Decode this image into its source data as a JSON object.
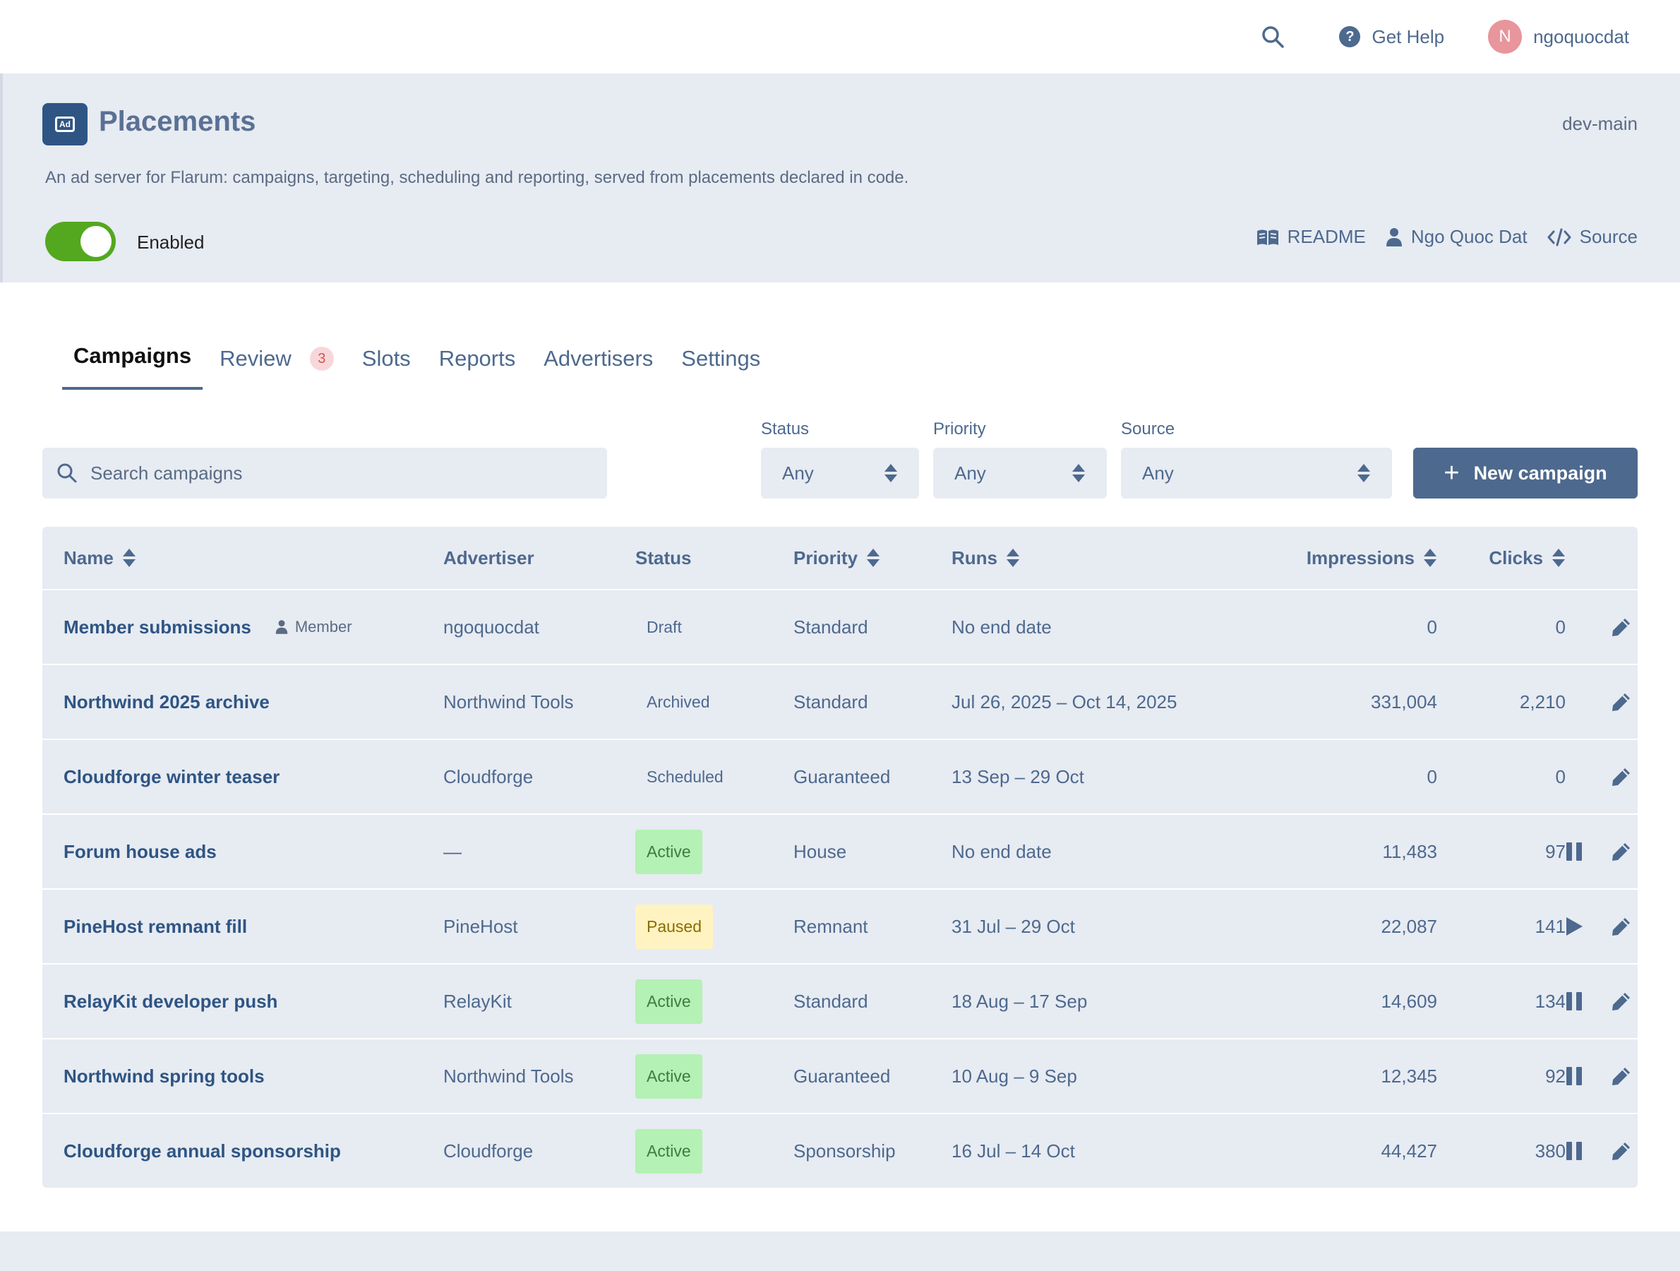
{
  "topbar": {
    "help_label": "Get Help",
    "user_initial": "N",
    "username": "ngoquocdat"
  },
  "extension": {
    "icon_text": "Ad",
    "title": "Placements",
    "version": "dev-main",
    "description": "An ad server for Flarum: campaigns, targeting, scheduling and reporting, served from placements declared in code.",
    "enabled_label": "Enabled",
    "enabled": true,
    "links": {
      "readme": "README",
      "author": "Ngo Quoc Dat",
      "source": "Source"
    }
  },
  "tabs": [
    {
      "label": "Campaigns",
      "active": true
    },
    {
      "label": "Review",
      "badge": "3"
    },
    {
      "label": "Slots"
    },
    {
      "label": "Reports"
    },
    {
      "label": "Advertisers"
    },
    {
      "label": "Settings"
    }
  ],
  "filters": {
    "search_placeholder": "Search campaigns",
    "status_label": "Status",
    "status_value": "Any",
    "priority_label": "Priority",
    "priority_value": "Any",
    "source_label": "Source",
    "source_value": "Any",
    "new_button": "New campaign"
  },
  "table": {
    "columns": {
      "name": "Name",
      "advertiser": "Advertiser",
      "status": "Status",
      "priority": "Priority",
      "runs": "Runs",
      "impressions": "Impressions",
      "clicks": "Clicks"
    },
    "rows": [
      {
        "name": "Member submissions",
        "tag": "Member",
        "advertiser": "ngoquocdat",
        "status": "Draft",
        "priority": "Standard",
        "runs": "No end date",
        "impressions": "0",
        "clicks": "0"
      },
      {
        "name": "Northwind 2025 archive",
        "advertiser": "Northwind Tools",
        "status": "Archived",
        "priority": "Standard",
        "runs": "Jul 26, 2025 – Oct 14, 2025",
        "impressions": "331,004",
        "clicks": "2,210"
      },
      {
        "name": "Cloudforge winter teaser",
        "advertiser": "Cloudforge",
        "status": "Scheduled",
        "priority": "Guaranteed",
        "runs": "13 Sep – 29 Oct",
        "impressions": "0",
        "clicks": "0"
      },
      {
        "name": "Forum house ads",
        "advertiser": "—",
        "status": "Active",
        "priority": "House",
        "runs": "No end date",
        "impressions": "11,483",
        "clicks": "97"
      },
      {
        "name": "PineHost remnant fill",
        "advertiser": "PineHost",
        "status": "Paused",
        "priority": "Remnant",
        "runs": "31 Jul – 29 Oct",
        "impressions": "22,087",
        "clicks": "141"
      },
      {
        "name": "RelayKit developer push",
        "advertiser": "RelayKit",
        "status": "Active",
        "priority": "Standard",
        "runs": "18 Aug – 17 Sep",
        "impressions": "14,609",
        "clicks": "134"
      },
      {
        "name": "Northwind spring tools",
        "advertiser": "Northwind Tools",
        "status": "Active",
        "priority": "Guaranteed",
        "runs": "10 Aug – 9 Sep",
        "impressions": "12,345",
        "clicks": "92"
      },
      {
        "name": "Cloudforge annual sponsorship",
        "advertiser": "Cloudforge",
        "status": "Active",
        "priority": "Sponsorship",
        "runs": "16 Jul – 14 Oct",
        "impressions": "44,427",
        "clicks": "380"
      }
    ]
  },
  "colors": {
    "primary": "#4d698e",
    "link": "#2e5584",
    "toggle_on": "#53a81f",
    "active_pill": "#b4f1b4",
    "paused_pill": "#fff3c1",
    "badge_bg": "#f8d7da",
    "avatar": "#e8959c"
  }
}
